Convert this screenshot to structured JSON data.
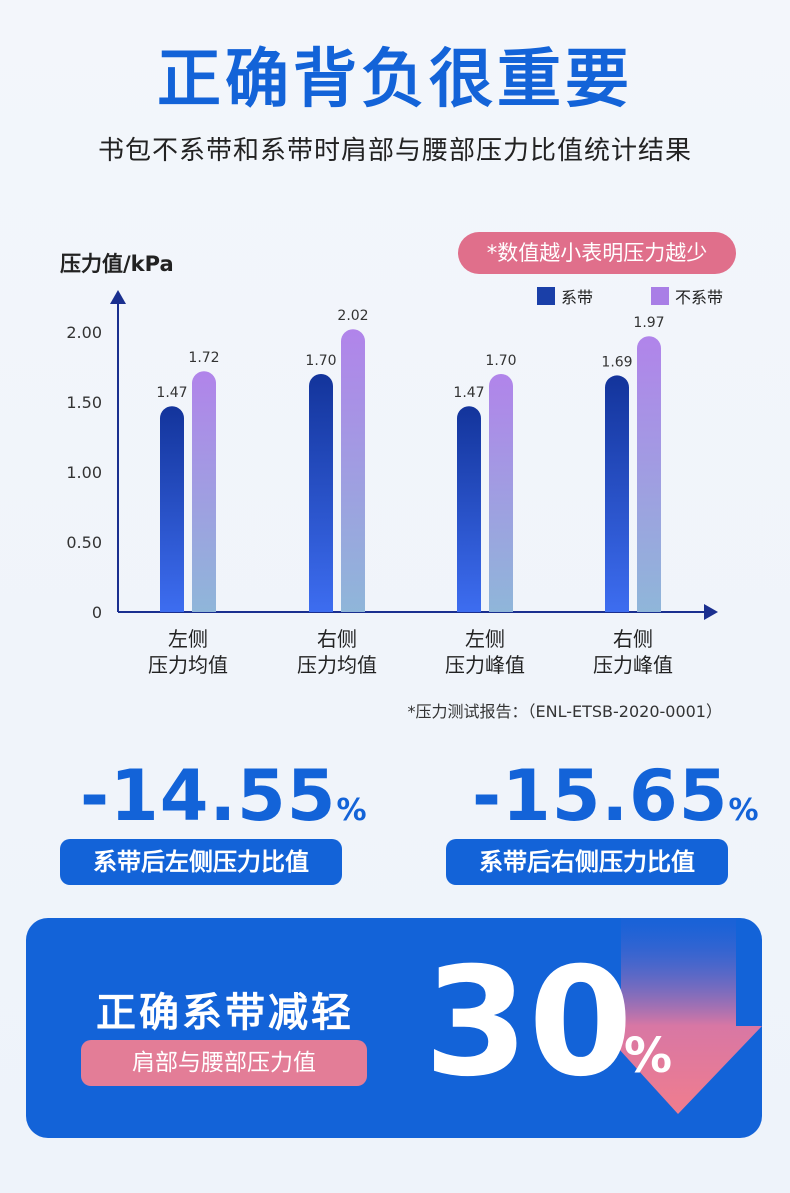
{
  "header": {
    "title": "正确背负很重要",
    "subtitle": "书包不系带和系带时肩部与腰部压力比值统计结果"
  },
  "note": "*数值越小表明压力越少",
  "source": "*压力测试报告：（ENL-ETSB-2020-0001）",
  "colors": {
    "brand": "#1363d8",
    "accent_pink": "#e06f8b",
    "series_strapped": "#1a3fa8",
    "series_unstrapped": "#a97ee6"
  },
  "chart_data": {
    "type": "bar",
    "ylabel": "压力值/kPa",
    "ylim": [
      0,
      2.2
    ],
    "yticks": [
      "0",
      "0.50",
      "1.00",
      "1.50",
      "2.00"
    ],
    "ytick_values": [
      0,
      0.5,
      1.0,
      1.5,
      2.0
    ],
    "categories": [
      [
        "左侧",
        "压力均值"
      ],
      [
        "右侧",
        "压力均值"
      ],
      [
        "左侧",
        "压力峰值"
      ],
      [
        "右侧",
        "压力峰值"
      ]
    ],
    "series": [
      {
        "name": "系带",
        "values": [
          1.47,
          1.7,
          1.47,
          1.69
        ],
        "labels": [
          "1.47",
          "1.70",
          "1.47",
          "1.69"
        ]
      },
      {
        "name": "不系带",
        "values": [
          1.72,
          2.02,
          1.7,
          1.97
        ],
        "labels": [
          "1.72",
          "2.02",
          "1.70",
          "1.97"
        ]
      }
    ],
    "legend_position": "top-right",
    "grid": false
  },
  "stats": [
    {
      "value": "-14.55",
      "unit": "%",
      "label": "系带后左侧压力比值"
    },
    {
      "value": "-15.65",
      "unit": "%",
      "label": "系带后右侧压力比值"
    }
  ],
  "banner": {
    "title": "正确系带减轻",
    "subtitle": "肩部与腰部压力值",
    "value": "30",
    "unit": "%"
  }
}
